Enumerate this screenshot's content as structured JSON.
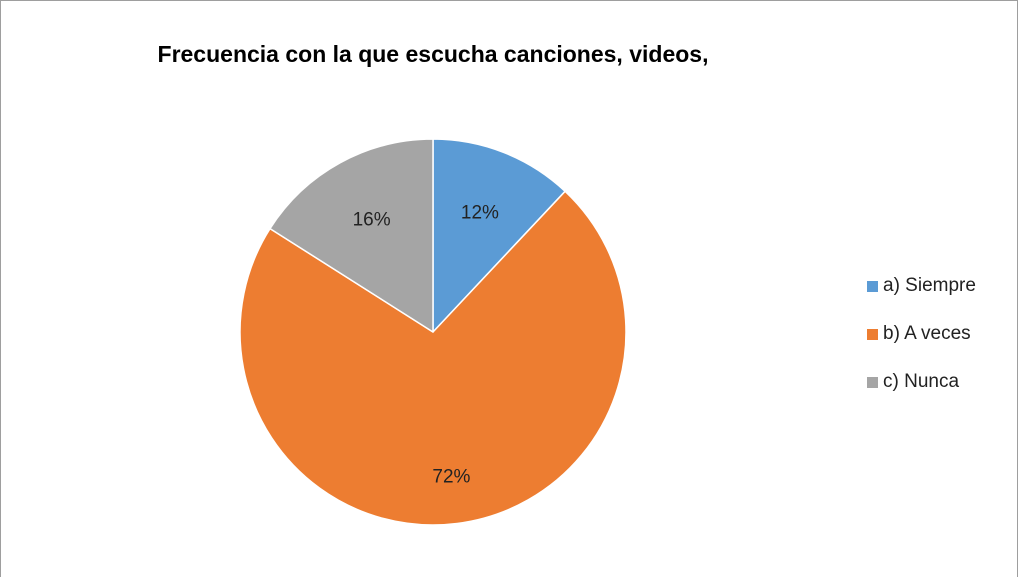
{
  "chart_data": {
    "type": "pie",
    "title": "Frecuencia con la que escucha canciones, videos,",
    "categories": [
      "a) Siempre",
      "b) A veces",
      "c) Nunca"
    ],
    "values": [
      12,
      72,
      16
    ],
    "data_labels": [
      "12%",
      "72%",
      "16%"
    ],
    "colors": [
      "#5b9bd5",
      "#ed7d31",
      "#a5a5a5"
    ],
    "start_angle_deg": 0,
    "direction": "clockwise",
    "legend_position": "right"
  }
}
